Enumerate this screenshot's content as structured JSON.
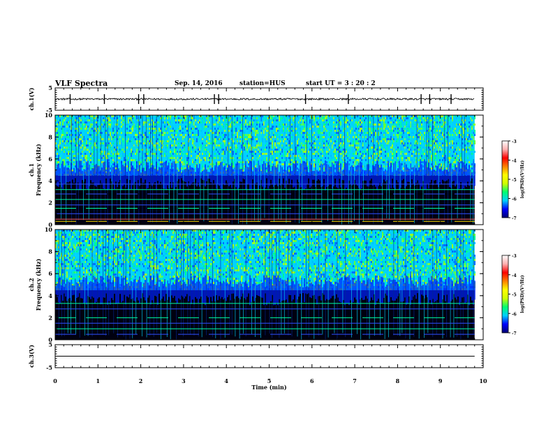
{
  "header": {
    "title": "VLF Spectra",
    "date": "Sep. 14, 2016",
    "station": "station=HUS",
    "start_time": "start  UT =   3 : 20 : 2"
  },
  "chart_data": [
    {
      "type": "line",
      "panel": "ch1-waveform",
      "ylabel": "ch.1(V)",
      "ylim": [
        -5,
        5
      ],
      "yticks": [
        "5",
        "-5"
      ],
      "x_range_min": [
        0,
        9.8
      ],
      "baseline_v": 0,
      "noise_amplitude_v": 0.4,
      "spike_times_min": [
        0.35,
        1.15,
        1.95,
        2.07,
        3.72,
        3.82,
        5.85,
        6.85,
        8.55,
        8.75,
        9.25
      ]
    },
    {
      "type": "heatmap",
      "panel": "ch1-spectrogram",
      "ylabel_line1": "ch.1",
      "ylabel_line2": "Frequency (kHz)",
      "ylim_khz": [
        0,
        10
      ],
      "yticks": [
        "0",
        "2",
        "4",
        "6",
        "8",
        "10"
      ],
      "x_range_min": [
        0,
        9.8
      ],
      "background_edge_khz": 4.5,
      "noise_lines_khz": [
        0.3,
        0.5,
        1.0,
        1.5,
        1.8,
        2.3,
        2.8,
        3.2,
        3.7
      ],
      "colorbar": {
        "label": "log(PSD)(V²/Hz)",
        "range": [
          -7,
          -3
        ],
        "ticks": [
          "-3",
          "-4",
          "-5",
          "-6",
          "-7"
        ]
      }
    },
    {
      "type": "heatmap",
      "panel": "ch2-spectrogram",
      "ylabel_line1": "ch.2",
      "ylabel_line2": "Frequency (kHz)",
      "ylim_khz": [
        0,
        10
      ],
      "yticks": [
        "0",
        "2",
        "4",
        "6",
        "8",
        "10"
      ],
      "x_range_min": [
        0,
        9.8
      ],
      "background_edge_khz": 4.5,
      "noise_lines_khz": [
        0.5,
        1.0,
        1.5,
        2.0,
        2.8,
        3.3
      ],
      "colorbar": {
        "label": "log(PSD)(V²/Hz)",
        "range": [
          -7,
          -3
        ],
        "ticks": [
          "-3",
          "-4",
          "-5",
          "-6",
          "-7"
        ]
      }
    },
    {
      "type": "line",
      "panel": "ch3-waveform",
      "ylabel": "ch.3(V)",
      "ylim": [
        -5,
        5
      ],
      "yticks": [
        "5",
        "-5"
      ],
      "x_range_min": [
        0,
        9.8
      ],
      "baseline_v": 0
    }
  ],
  "x_axis": {
    "label": "Time (min)",
    "range": [
      0,
      10
    ],
    "ticks": [
      "0",
      "1",
      "2",
      "3",
      "4",
      "5",
      "6",
      "7",
      "8",
      "9",
      "10"
    ]
  },
  "colors": {
    "colormap": [
      "#000070",
      "#0000ff",
      "#00d0ff",
      "#00ff70",
      "#d0ff00",
      "#ffff00",
      "#ff8000",
      "#ff0000",
      "#ffb0b0",
      "#ffffff"
    ]
  }
}
